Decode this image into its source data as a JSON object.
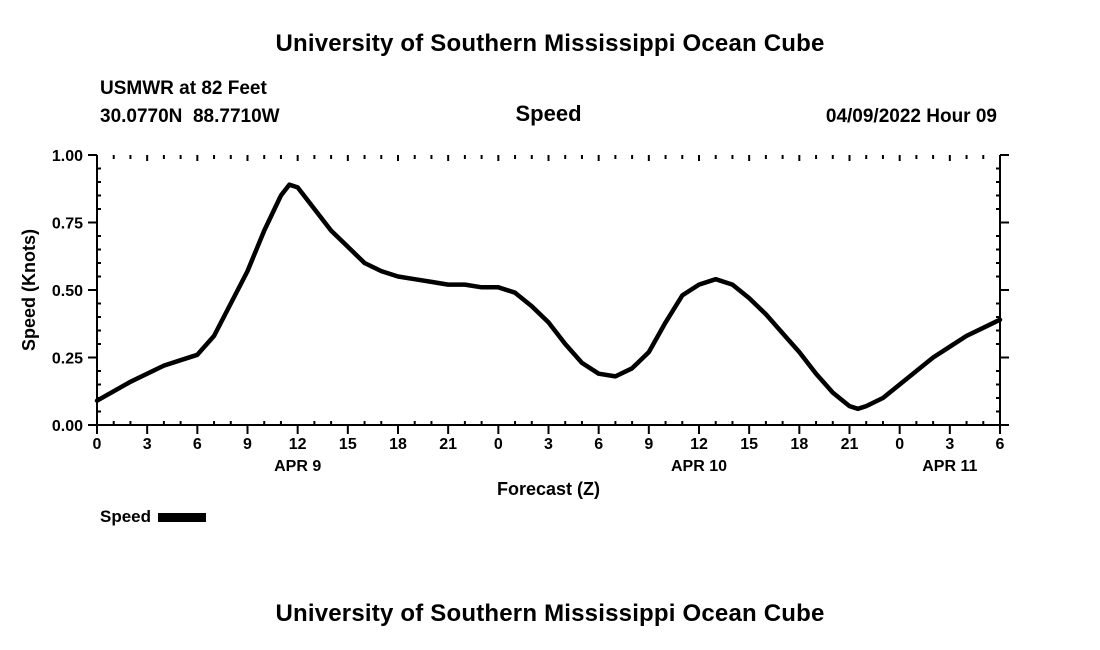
{
  "page": {
    "title_top": "University of Southern Mississippi Ocean Cube",
    "title_bottom": "University of Southern Mississippi Ocean Cube"
  },
  "header": {
    "station": "USMWR at 82 Feet",
    "coordinates": "30.0770N  88.7710W",
    "plot_title": "Speed",
    "datetime": "04/09/2022 Hour 09"
  },
  "chart_data": {
    "type": "line",
    "title": "Speed",
    "xlabel": "Forecast (Z)",
    "ylabel": "Speed (Knots)",
    "xlim": [
      0,
      54
    ],
    "ylim": [
      0,
      1
    ],
    "yticks": [
      0.0,
      0.25,
      0.5,
      0.75,
      1.0
    ],
    "ytick_labels": [
      "0.00",
      "0.25",
      "0.50",
      "0.75",
      "1.00"
    ],
    "xticks": [
      0,
      3,
      6,
      9,
      12,
      15,
      18,
      21,
      24,
      27,
      30,
      33,
      36,
      39,
      42,
      45,
      48,
      51,
      54
    ],
    "xtick_labels": [
      "0",
      "3",
      "6",
      "9",
      "12",
      "15",
      "18",
      "21",
      "0",
      "3",
      "6",
      "9",
      "12",
      "15",
      "18",
      "21",
      "0",
      "3",
      "6"
    ],
    "date_labels": [
      {
        "label": "APR 9",
        "hour": 12
      },
      {
        "label": "APR 10",
        "hour": 36
      },
      {
        "label": "APR 11",
        "hour": 51
      }
    ],
    "legend_label": "Speed",
    "grid": "none; dotted minor ticks along top and bottom edges",
    "line_color": "#000000",
    "series": [
      {
        "name": "Speed",
        "color": "#000000",
        "x": [
          0,
          2,
          4,
          5,
          6,
          7,
          8,
          9,
          10,
          11,
          11.5,
          12,
          13,
          14,
          15,
          16,
          17,
          18,
          19,
          20,
          21,
          22,
          23,
          24,
          25,
          26,
          27,
          28,
          29,
          30,
          31,
          32,
          33,
          34,
          35,
          36,
          37,
          38,
          39,
          40,
          41,
          42,
          43,
          44,
          45,
          45.5,
          46,
          47,
          48,
          49,
          50,
          51,
          52,
          53,
          54
        ],
        "y": [
          0.09,
          0.16,
          0.22,
          0.24,
          0.26,
          0.33,
          0.45,
          0.57,
          0.72,
          0.85,
          0.89,
          0.88,
          0.8,
          0.72,
          0.66,
          0.6,
          0.57,
          0.55,
          0.54,
          0.53,
          0.52,
          0.52,
          0.51,
          0.51,
          0.49,
          0.44,
          0.38,
          0.3,
          0.23,
          0.19,
          0.18,
          0.21,
          0.27,
          0.38,
          0.48,
          0.52,
          0.54,
          0.52,
          0.47,
          0.41,
          0.34,
          0.27,
          0.19,
          0.12,
          0.07,
          0.06,
          0.07,
          0.1,
          0.15,
          0.2,
          0.25,
          0.29,
          0.33,
          0.36,
          0.39
        ]
      }
    ]
  }
}
